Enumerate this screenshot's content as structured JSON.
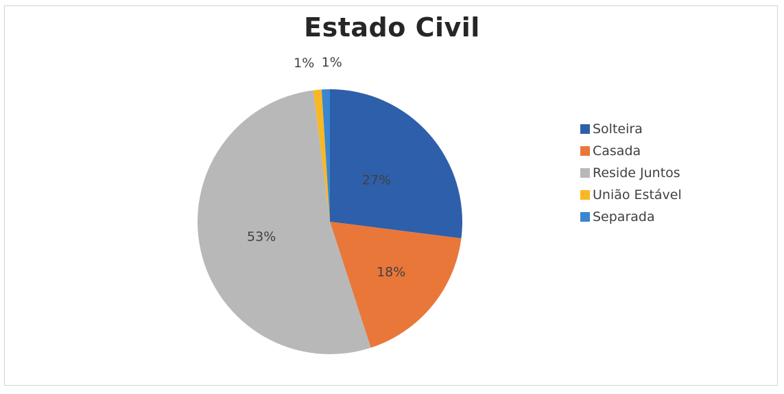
{
  "chart_data": {
    "type": "pie",
    "title": "Estado Civil",
    "categories": [
      "Solteira",
      "Casada",
      "Reside Juntos",
      "União Estável",
      "Separada"
    ],
    "values": [
      27,
      18,
      53,
      1,
      1
    ],
    "data_labels": [
      "27%",
      "18%",
      "53%",
      "1%",
      "1%"
    ],
    "colors": [
      "#2e5faa",
      "#e9773a",
      "#b8b8b8",
      "#f9b823",
      "#3a86d0"
    ],
    "legend_position": "right"
  }
}
